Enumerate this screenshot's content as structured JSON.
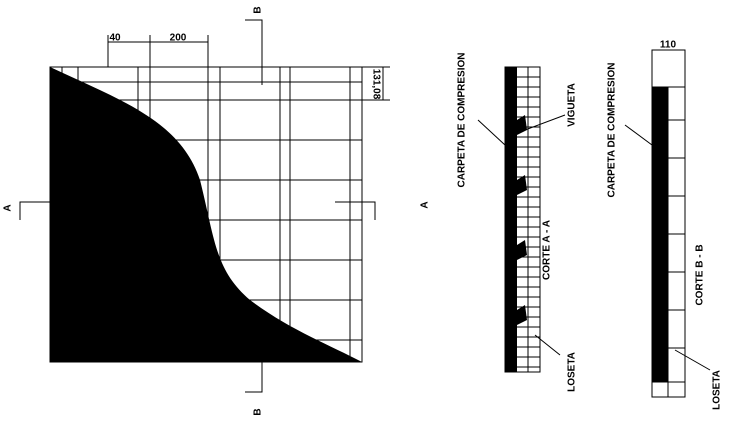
{
  "plan": {
    "section_top": "B",
    "section_bottom": "B",
    "section_left": "A",
    "section_right": "A",
    "dim_rib": "40",
    "dim_spacing": "200",
    "dim_slab": "131,08"
  },
  "section_aa": {
    "label_top": "CARPETA DE COMPRESION",
    "label_joist": "VIGUETA",
    "title": "CORTE A - A",
    "label_bottom": "LOSETA"
  },
  "section_bb": {
    "dim_width": "110",
    "label_top": "CARPETA DE COMPRESION",
    "title": "CORTE B - B",
    "label_bottom": "LOSETA"
  }
}
